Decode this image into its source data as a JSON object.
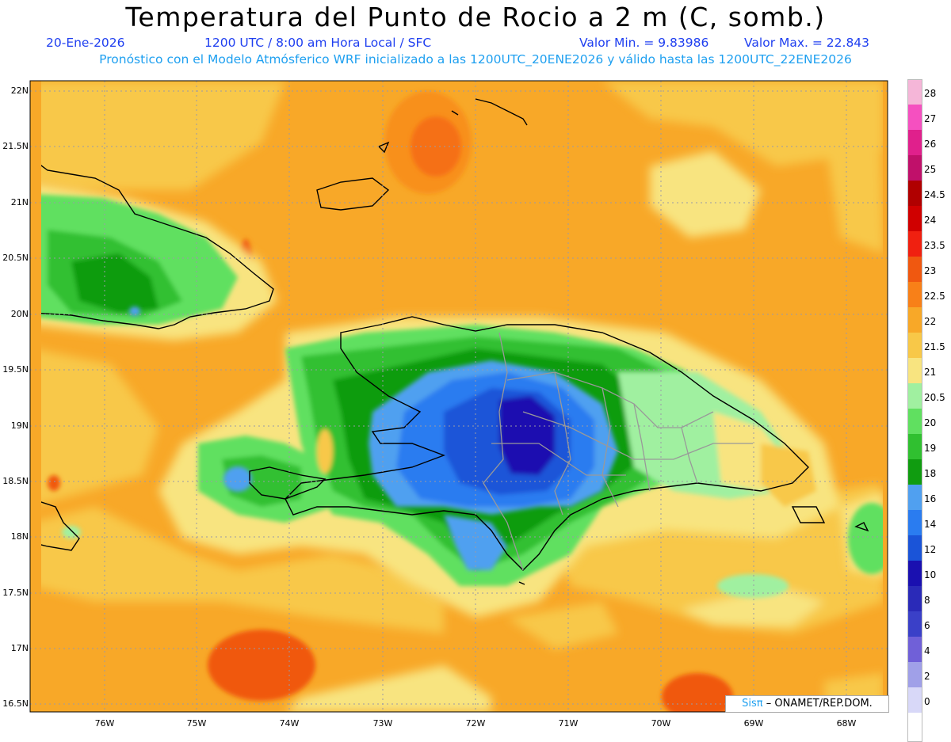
{
  "header": {
    "title": "Temperatura del Punto de Rocio a 2 m (C, somb.)",
    "date": "20-Ene-2026",
    "time": "1200 UTC / 8:00 am Hora Local / SFC",
    "min": "Valor Min. = 9.83986",
    "max": "Valor Max. = 22.843",
    "model_line": "Pronóstico con el Modelo Atmósferico WRF inicializado a las 1200UTC_20ENE2026 y válido hasta las  1200UTC_22ENE2026"
  },
  "map": {
    "lat_labels": [
      "22N",
      "21.5N",
      "21N",
      "20.5N",
      "20N",
      "19.5N",
      "19N",
      "18.5N",
      "18N",
      "17.5N",
      "17N",
      "16.5N"
    ],
    "lon_labels": [
      "76W",
      "75W",
      "74W",
      "73W",
      "72W",
      "71W",
      "70W",
      "69W",
      "68W"
    ],
    "credit_logo": "Sisπ",
    "credit_text": "– ONAMET/REP.DOM."
  },
  "colorbar": {
    "labels": [
      "28",
      "27",
      "26",
      "25",
      "24.5",
      "24",
      "23.5",
      "23",
      "22.5",
      "22",
      "21.5",
      "21",
      "20.5",
      "20",
      "19",
      "18",
      "16",
      "14",
      "12",
      "10",
      "8",
      "6",
      "4",
      "2",
      "0"
    ],
    "colors": [
      "#f5b6d8",
      "#f550c0",
      "#e0208c",
      "#c0106a",
      "#b00000",
      "#d00000",
      "#f02010",
      "#f05810",
      "#f88018",
      "#f8a828",
      "#f8c848",
      "#f8e480",
      "#a0f0a0",
      "#60e060",
      "#30c030",
      "#109c10",
      "#50a0f0",
      "#2a7cf0",
      "#1a54d8",
      "#1a10b0",
      "#2a2ab8",
      "#3a40c8",
      "#7060d8",
      "#a0a0e8",
      "#d8d8f8",
      "#ffffff"
    ],
    "accent_colors": {
      "title": "#000000",
      "subtitle": "#1f3ff0",
      "model_line": "#1fa0f0"
    }
  }
}
